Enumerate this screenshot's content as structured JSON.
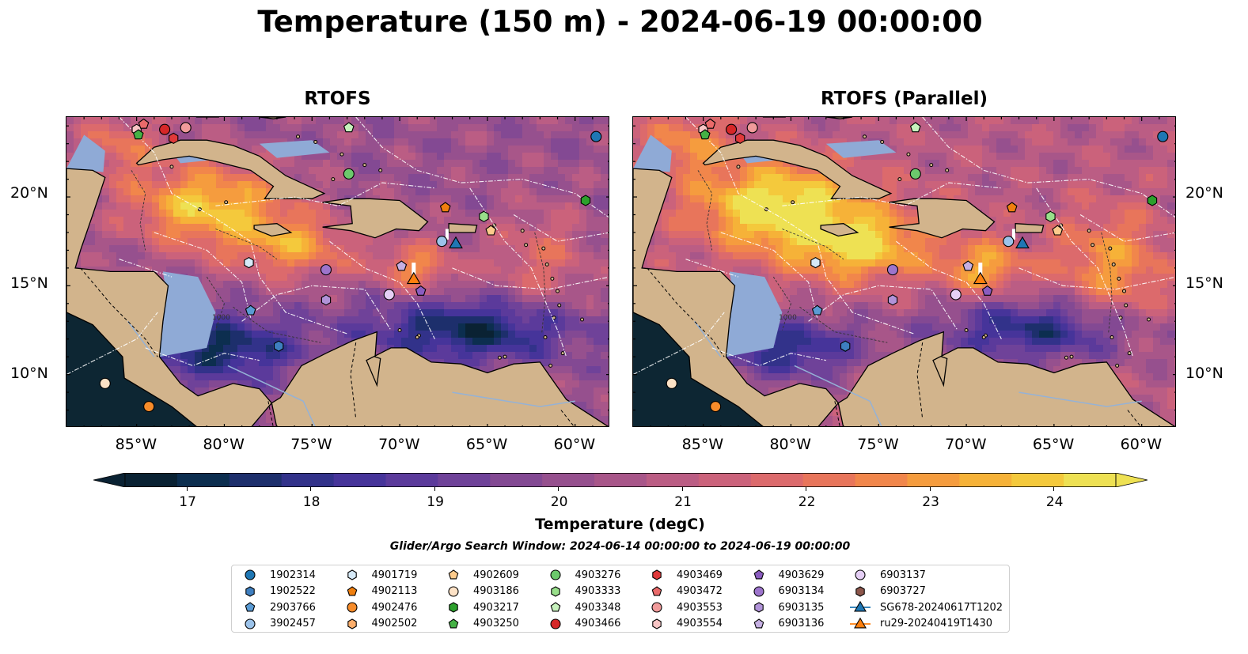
{
  "title": "Temperature (150 m) - 2024-06-19 00:00:00",
  "panels": [
    {
      "title": "RTOFS",
      "id": "rtofs"
    },
    {
      "title": "RTOFS (Parallel)",
      "id": "parallel"
    }
  ],
  "map": {
    "lon_range": [
      -89,
      -58
    ],
    "lat_range": [
      7,
      24.5
    ],
    "lon_ticks": [
      "85°W",
      "80°W",
      "75°W",
      "70°W",
      "65°W",
      "60°W"
    ],
    "lat_ticks": [
      "20°N",
      "15°N",
      "10°N"
    ],
    "contour_label": "1000"
  },
  "colorbar": {
    "label": "Temperature (degC)",
    "min": 16.5,
    "max": 24.5,
    "ticks": [
      "17",
      "18",
      "19",
      "20",
      "21",
      "22",
      "23",
      "24"
    ],
    "colors": [
      "#0a2233",
      "#0c2e4f",
      "#1d2f6c",
      "#32328a",
      "#46349a",
      "#5b3a9b",
      "#6f4299",
      "#834993",
      "#96508e",
      "#a85689",
      "#bb5d84",
      "#cb627b",
      "#dc6a6c",
      "#e8755b",
      "#f1864b",
      "#f59c3e",
      "#f6b238",
      "#f4c93c",
      "#eee153"
    ],
    "extend": "both"
  },
  "search_window": "Glider/Argo Search Window: 2024-06-14 00:00:00 to 2024-06-19 00:00:00",
  "legend": [
    {
      "label": "1902314",
      "marker": "circle",
      "color": "#1f77b4"
    },
    {
      "label": "1902522",
      "marker": "hexagon",
      "color": "#3e7fc0"
    },
    {
      "label": "2903766",
      "marker": "pentagon",
      "color": "#5a9bd4"
    },
    {
      "label": "3902457",
      "marker": "circle",
      "color": "#9cc3ea"
    },
    {
      "label": "4901719",
      "marker": "hexagon",
      "color": "#d6eaf8"
    },
    {
      "label": "4902113",
      "marker": "pentagon",
      "color": "#f07f0e"
    },
    {
      "label": "4902476",
      "marker": "circle",
      "color": "#f78c2a"
    },
    {
      "label": "4902502",
      "marker": "hexagon",
      "color": "#fcae6b"
    },
    {
      "label": "4902609",
      "marker": "pentagon",
      "color": "#fdcb8c"
    },
    {
      "label": "4903186",
      "marker": "circle",
      "color": "#fde2c6"
    },
    {
      "label": "4903217",
      "marker": "hexagon",
      "color": "#2ca02c"
    },
    {
      "label": "4903250",
      "marker": "pentagon",
      "color": "#45b145"
    },
    {
      "label": "4903276",
      "marker": "circle",
      "color": "#6cc96c"
    },
    {
      "label": "4903333",
      "marker": "hexagon",
      "color": "#98df8a"
    },
    {
      "label": "4903348",
      "marker": "pentagon",
      "color": "#c7f2bd"
    },
    {
      "label": "4903466",
      "marker": "circle",
      "color": "#d62728"
    },
    {
      "label": "4903469",
      "marker": "hexagon",
      "color": "#e0393a"
    },
    {
      "label": "4903472",
      "marker": "pentagon",
      "color": "#ea6a6a"
    },
    {
      "label": "4903553",
      "marker": "circle",
      "color": "#f19b9b"
    },
    {
      "label": "4903554",
      "marker": "hexagon",
      "color": "#f8c5c5"
    },
    {
      "label": "4903629",
      "marker": "pentagon",
      "color": "#8a5cc0"
    },
    {
      "label": "6903134",
      "marker": "circle",
      "color": "#9d74cc"
    },
    {
      "label": "6903135",
      "marker": "hexagon",
      "color": "#b193d9"
    },
    {
      "label": "6903136",
      "marker": "pentagon",
      "color": "#c6b0e3"
    },
    {
      "label": "6903137",
      "marker": "circle",
      "color": "#e5cff5"
    },
    {
      "label": "6903727",
      "marker": "hexagon",
      "color": "#8c564b"
    },
    {
      "label": "SG678-20240617T1202",
      "marker": "triangle",
      "color": "#1f77b4"
    },
    {
      "label": "ru29-20240419T1430",
      "marker": "triangle",
      "color": "#ff7f0e"
    }
  ],
  "floats": [
    {
      "label": "1902314",
      "lon": -58.8,
      "lat": 23.4
    },
    {
      "label": "4903348",
      "lon": -72.9,
      "lat": 23.9
    },
    {
      "label": "4903554",
      "lon": -85.0,
      "lat": 23.8
    },
    {
      "label": "4903466",
      "lon": -83.4,
      "lat": 23.8
    },
    {
      "label": "4903553",
      "lon": -82.2,
      "lat": 23.9
    },
    {
      "label": "4903472",
      "lon": -84.6,
      "lat": 24.1
    },
    {
      "label": "4903469",
      "lon": -82.9,
      "lat": 23.3
    },
    {
      "label": "4903250",
      "lon": -84.9,
      "lat": 23.5
    },
    {
      "label": "4903276",
      "lon": -72.9,
      "lat": 21.3
    },
    {
      "label": "4903217",
      "lon": -59.4,
      "lat": 19.8
    },
    {
      "label": "4902113",
      "lon": -67.4,
      "lat": 19.4
    },
    {
      "label": "4903333",
      "lon": -65.2,
      "lat": 18.9
    },
    {
      "label": "4902609",
      "lon": -64.8,
      "lat": 18.1
    },
    {
      "label": "3902457",
      "lon": -67.6,
      "lat": 17.5
    },
    {
      "label": "4901719",
      "lon": -78.6,
      "lat": 16.3
    },
    {
      "label": "6903134",
      "lon": -74.2,
      "lat": 15.9
    },
    {
      "label": "6903136",
      "lon": -69.9,
      "lat": 16.1
    },
    {
      "label": "6903137",
      "lon": -70.6,
      "lat": 14.5
    },
    {
      "label": "4903629",
      "lon": -68.8,
      "lat": 14.7
    },
    {
      "label": "6903135",
      "lon": -74.2,
      "lat": 14.2
    },
    {
      "label": "2903766",
      "lon": -78.5,
      "lat": 13.6
    },
    {
      "label": "1902522",
      "lon": -76.9,
      "lat": 11.6
    },
    {
      "label": "4903186",
      "lon": -86.8,
      "lat": 9.5
    },
    {
      "label": "4902476",
      "lon": -84.3,
      "lat": 8.2
    }
  ],
  "gliders": [
    {
      "label": "SG678-20240617T1202",
      "lon": -66.8,
      "lat": 17.4
    },
    {
      "label": "ru29-20240419T1430",
      "lon": -69.2,
      "lat": 15.4
    }
  ]
}
